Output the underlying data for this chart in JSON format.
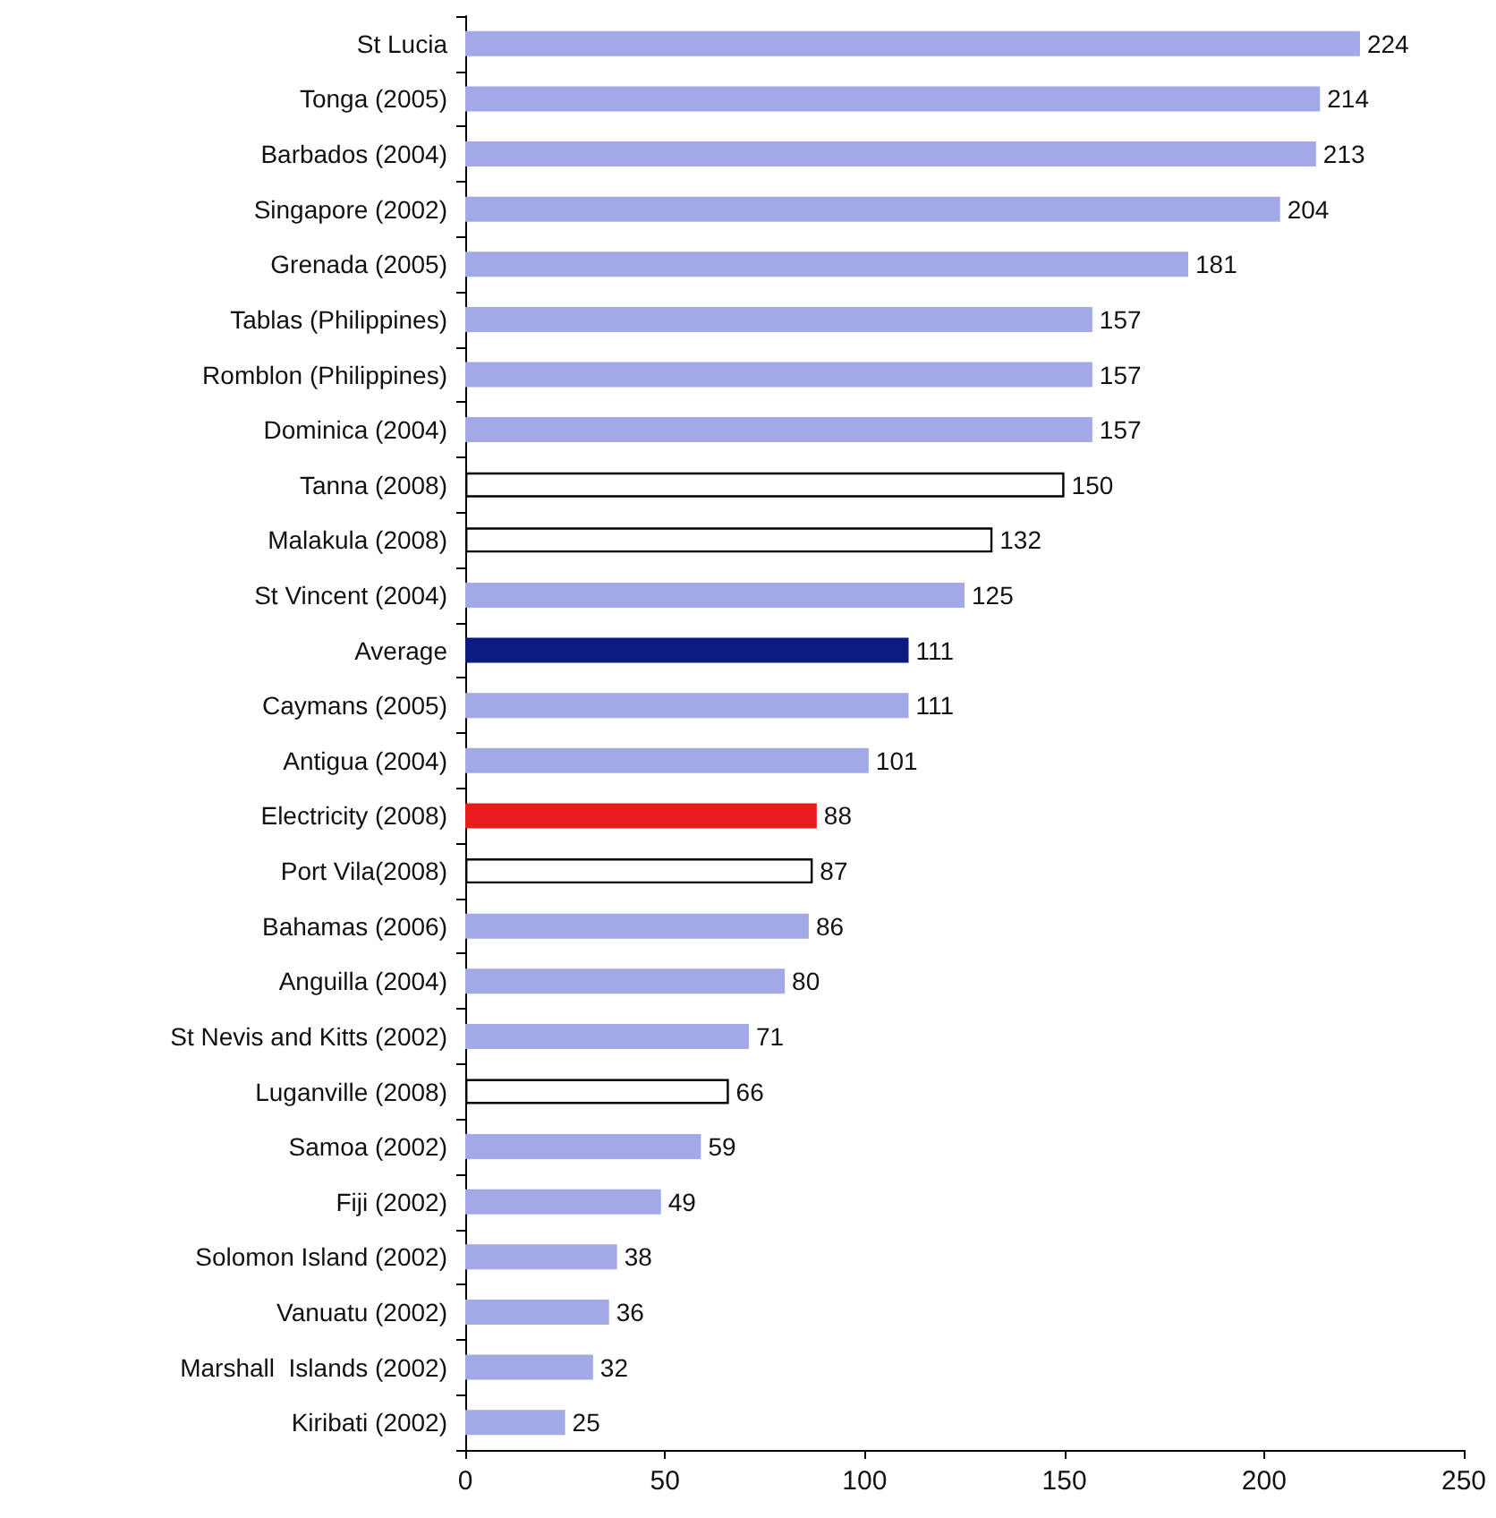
{
  "chart_data": {
    "type": "bar",
    "orientation": "horizontal",
    "categories": [
      "St Lucia",
      "Tonga (2005)",
      "Barbados (2004)",
      "Singapore (2002)",
      "Grenada (2005)",
      "Tablas (Philippines)",
      "Romblon (Philippines)",
      "Dominica (2004)",
      "Tanna (2008)",
      "Malakula (2008)",
      "St Vincent (2004)",
      "Average",
      "Caymans (2005)",
      "Antigua (2004)",
      "Electricity (2008)",
      "Port Vila(2008)",
      "Bahamas (2006)",
      "Anguilla (2004)",
      "St Nevis and Kitts (2002)",
      "Luganville (2008)",
      "Samoa (2002)",
      "Fiji (2002)",
      "Solomon Island (2002)",
      "Vanuatu (2002)",
      "Marshall  Islands (2002)",
      "Kiribati (2002)"
    ],
    "values": [
      224,
      214,
      213,
      204,
      181,
      157,
      157,
      157,
      150,
      132,
      125,
      111,
      111,
      101,
      88,
      87,
      86,
      80,
      71,
      66,
      59,
      49,
      38,
      36,
      32,
      25
    ],
    "colors": [
      "#a3a9e6",
      "#a3a9e6",
      "#a3a9e6",
      "#a3a9e6",
      "#a3a9e6",
      "#a3a9e6",
      "#a3a9e6",
      "#a3a9e6",
      "#ffffff",
      "#ffffff",
      "#a3a9e6",
      "#0b1a7e",
      "#a3a9e6",
      "#a3a9e6",
      "#e81c1c",
      "#ffffff",
      "#a3a9e6",
      "#a3a9e6",
      "#a3a9e6",
      "#ffffff",
      "#a3a9e6",
      "#a3a9e6",
      "#a3a9e6",
      "#a3a9e6",
      "#a3a9e6",
      "#a3a9e6"
    ],
    "xlim": [
      0,
      250
    ],
    "xticks": [
      0,
      50,
      100,
      150,
      200,
      250
    ],
    "data_labels": true
  }
}
